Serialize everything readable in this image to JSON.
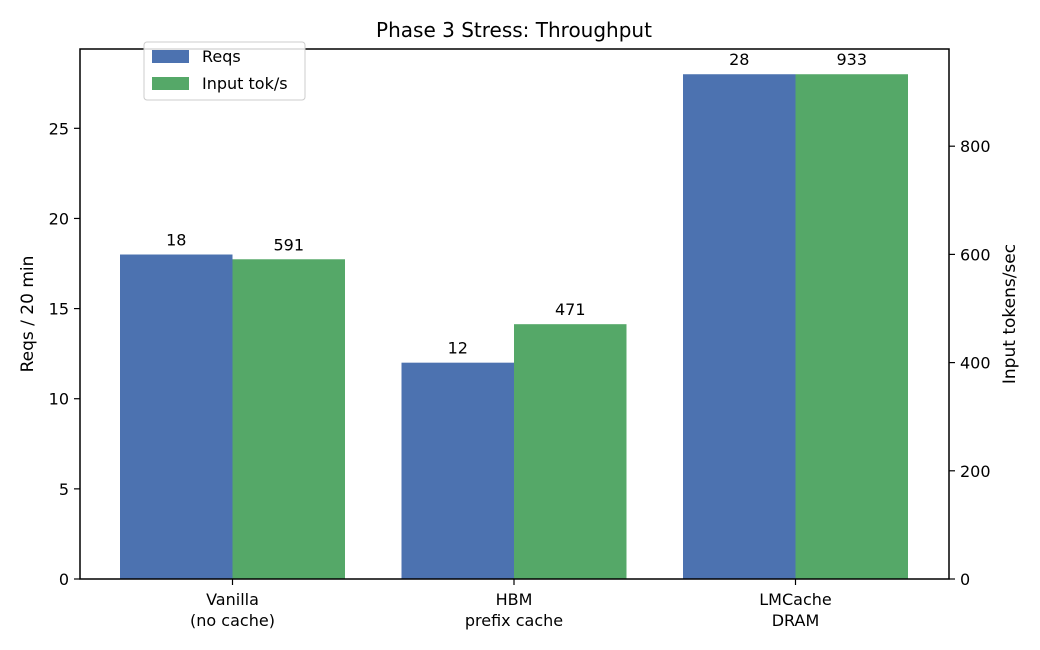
{
  "chart_data": {
    "type": "bar",
    "title": "Phase 3 Stress: Throughput",
    "categories": [
      [
        "Vanilla",
        "(no cache)"
      ],
      [
        "HBM",
        "prefix cache"
      ],
      [
        "LMCache",
        "DRAM"
      ]
    ],
    "series": [
      {
        "name": "Reqs",
        "axis": "left",
        "color": "#4c72b0",
        "values": [
          18,
          12,
          28
        ],
        "labels": [
          "18",
          "12",
          "28"
        ]
      },
      {
        "name": "Input tok/s",
        "axis": "right",
        "color": "#55a868",
        "values": [
          591,
          471,
          933
        ],
        "labels": [
          "591",
          "471",
          "933"
        ]
      }
    ],
    "ylabel_left": "Reqs / 20 min",
    "ylabel_right": "Input tokens/sec",
    "ylabel_left_color": "#4c72b0",
    "ylabel_right_color": "#55a868",
    "ylim_left": [
      0,
      29.4
    ],
    "ylim_right": [
      0,
      979.65
    ],
    "yticks_left": [
      0,
      5,
      10,
      15,
      20,
      25
    ],
    "yticks_right": [
      0,
      200,
      400,
      600,
      800
    ],
    "legend_position": "upper-left",
    "grid": false
  }
}
